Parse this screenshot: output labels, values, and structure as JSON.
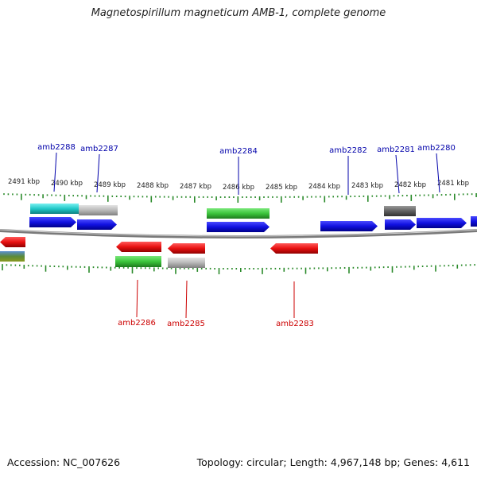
{
  "title": "Magnetospirillum magneticum AMB-1, complete genome",
  "footer": {
    "accession": "Accession: NC_007626",
    "topology": "Topology: circular; Length: 4,967,148 bp; Genes: 4,611"
  },
  "scale_labels": [
    "2491 kbp",
    "2490 kbp",
    "2489 kbp",
    "2488 kbp",
    "2487 kbp",
    "2486 kbp",
    "2485 kbp",
    "2484 kbp",
    "2483 kbp",
    "2482 kbp",
    "2481 kbp"
  ],
  "genes_forward": [
    "amb2288",
    "amb2287",
    "amb2284",
    "amb2282",
    "amb2281",
    "amb2280"
  ],
  "genes_reverse": [
    "amb2286",
    "amb2285",
    "amb2283"
  ],
  "colors": {
    "forward_gene": "#1010e0",
    "reverse_gene": "#e01010",
    "forward_label": "#0000aa",
    "reverse_label": "#cc0000",
    "ticks": "#2a8a2a",
    "backbone": "#8a8a8a",
    "annotation_green": "#3cc43c",
    "annotation_cyan": "#20c8c8",
    "annotation_gray": "#b0b0b0",
    "annotation_dark": "#606060"
  }
}
